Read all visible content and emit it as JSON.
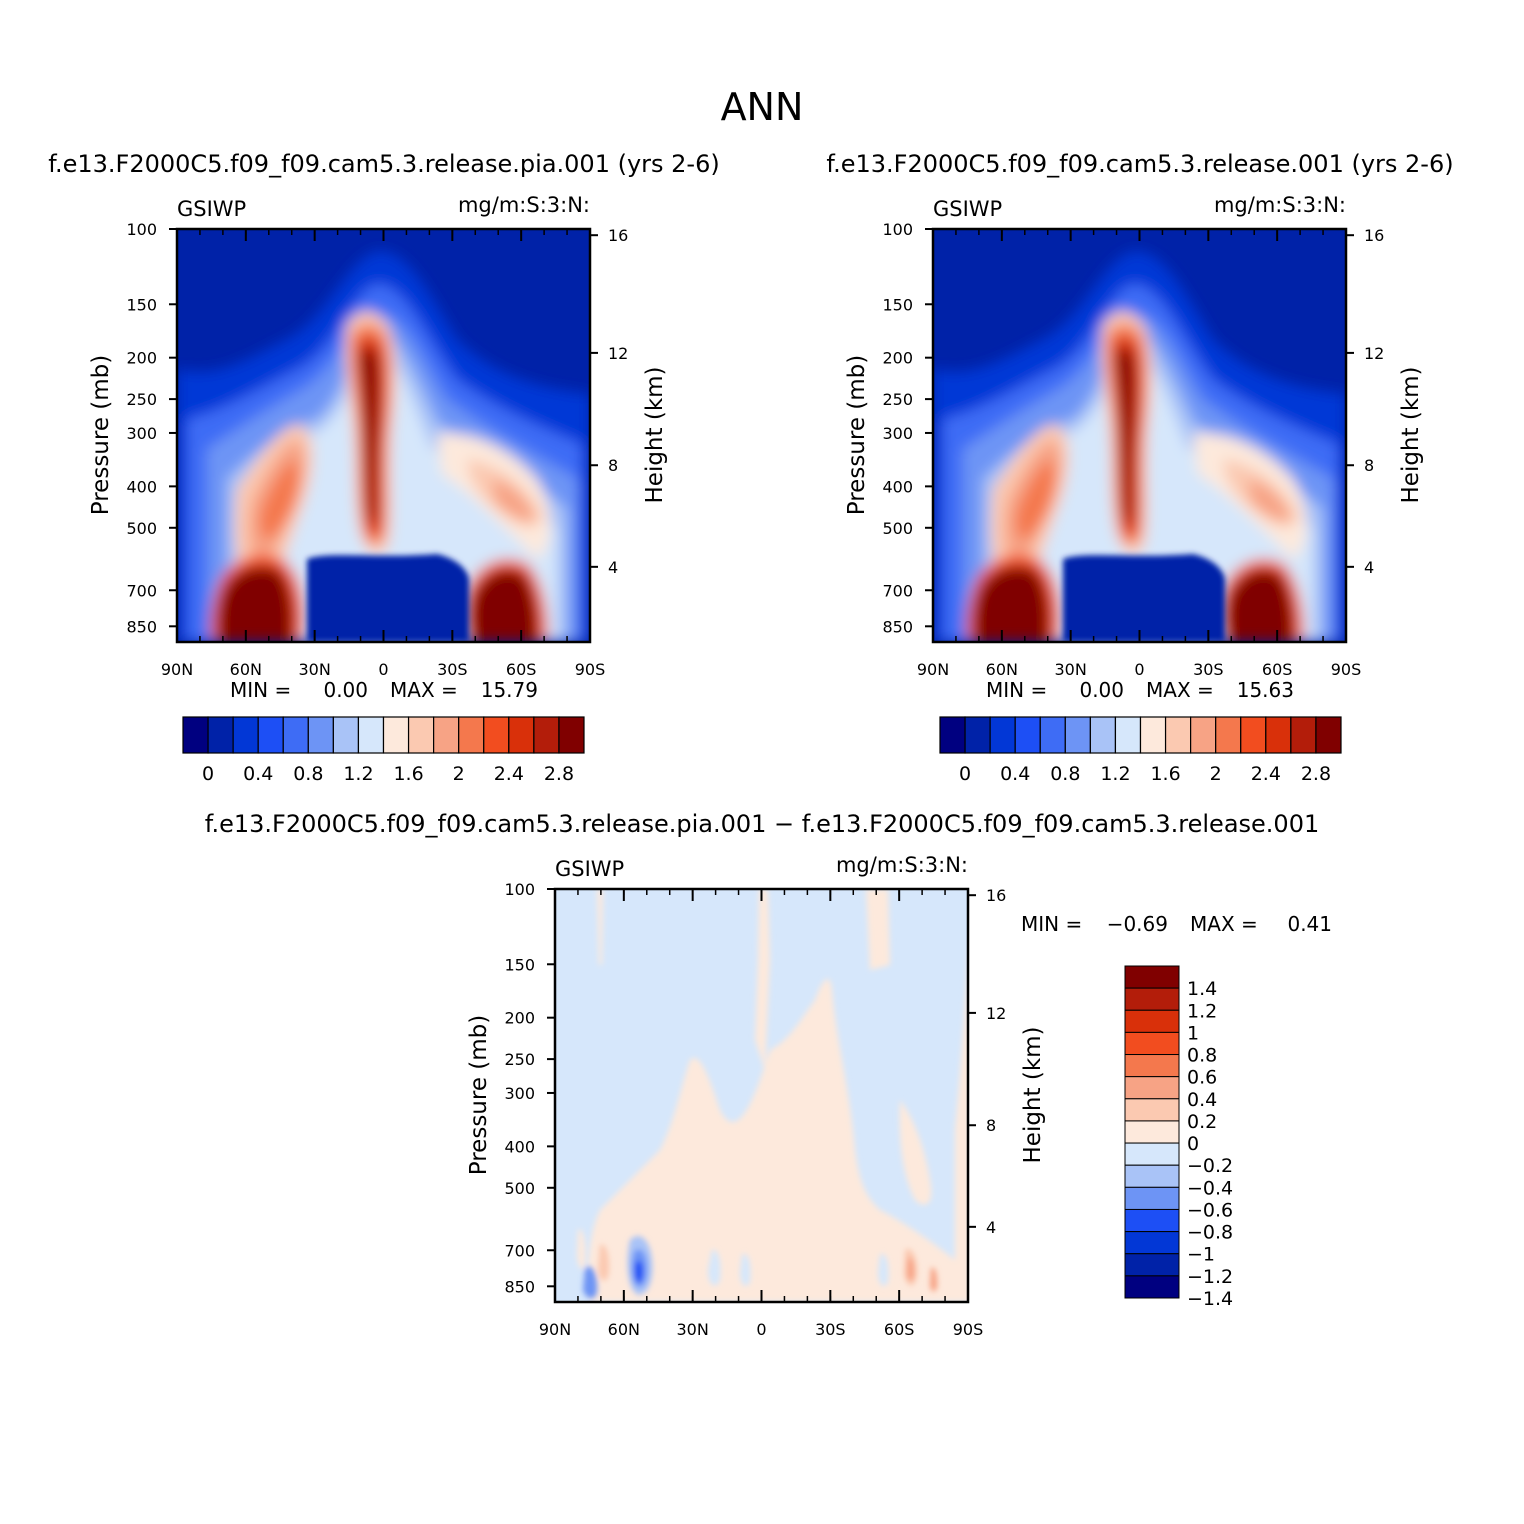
{
  "main_title": "ANN",
  "colors": {
    "main": [
      "#000080",
      "#0022a8",
      "#0237d6",
      "#1d4ff5",
      "#3e6cf5",
      "#6d94f5",
      "#a9c3f7",
      "#d6e7fb",
      "#fde9dc",
      "#fbc9b1",
      "#f7a385",
      "#f4784d",
      "#f24d1f",
      "#d9300a",
      "#b31d0a",
      "#800000"
    ],
    "diff": [
      "#000080",
      "#0022a8",
      "#0237d6",
      "#1d4ff5",
      "#6d94f5",
      "#a9c3f7",
      "#d6e7fb",
      "#fde9dc",
      "#fbc9b1",
      "#f7a385",
      "#f4784d",
      "#f24d1f",
      "#d9300a",
      "#b31d0a",
      "#800000"
    ]
  },
  "chart_data": [
    {
      "id": "panel-pia",
      "type": "contour",
      "title": "f.e13.F2000C5.f09_f09.cam5.3.release.pia.001 (yrs 2-6)",
      "variable": "GSIWP",
      "units": "mg/m:S:3:N:",
      "ylabel": "Pressure (mb)",
      "y2label": "Height (km)",
      "x_ticks": [
        "90N",
        "60N",
        "30N",
        "0",
        "30S",
        "60S",
        "90S"
      ],
      "y_ticks": [
        "100",
        "150",
        "200",
        "250",
        "300",
        "400",
        "500",
        "700",
        "850"
      ],
      "y2_ticks": [
        "16",
        "12",
        "8",
        "4"
      ],
      "min_label": "MIN =",
      "min": "0.00",
      "max_label": "MAX =",
      "max": "15.79",
      "colorbar_labels": [
        "0",
        "0.4",
        "0.8",
        "1.2",
        "1.6",
        "2",
        "2.4",
        "2.8"
      ]
    },
    {
      "id": "panel-control",
      "type": "contour",
      "title": "f.e13.F2000C5.f09_f09.cam5.3.release.001 (yrs 2-6)",
      "variable": "GSIWP",
      "units": "mg/m:S:3:N:",
      "ylabel": "Pressure (mb)",
      "y2label": "Height (km)",
      "x_ticks": [
        "90N",
        "60N",
        "30N",
        "0",
        "30S",
        "60S",
        "90S"
      ],
      "y_ticks": [
        "100",
        "150",
        "200",
        "250",
        "300",
        "400",
        "500",
        "700",
        "850"
      ],
      "y2_ticks": [
        "16",
        "12",
        "8",
        "4"
      ],
      "min_label": "MIN =",
      "min": "0.00",
      "max_label": "MAX =",
      "max": "15.63",
      "colorbar_labels": [
        "0",
        "0.4",
        "0.8",
        "1.2",
        "1.6",
        "2",
        "2.4",
        "2.8"
      ]
    },
    {
      "id": "panel-diff",
      "type": "contour",
      "title": "f.e13.F2000C5.f09_f09.cam5.3.release.pia.001 − f.e13.F2000C5.f09_f09.cam5.3.release.001",
      "variable": "GSIWP",
      "units": "mg/m:S:3:N:",
      "ylabel": "Pressure (mb)",
      "y2label": "Height (km)",
      "x_ticks": [
        "90N",
        "60N",
        "30N",
        "0",
        "30S",
        "60S",
        "90S"
      ],
      "y_ticks": [
        "100",
        "150",
        "200",
        "250",
        "300",
        "400",
        "500",
        "700",
        "850"
      ],
      "y2_ticks": [
        "16",
        "12",
        "8",
        "4"
      ],
      "min_label": "MIN =",
      "min": "−0.69",
      "max_label": "MAX =",
      "max": "0.41",
      "colorbar_labels": [
        "1.4",
        "1.2",
        "1",
        "0.8",
        "0.6",
        "0.4",
        "0.2",
        "0",
        "−0.2",
        "−0.4",
        "−0.6",
        "−0.8",
        "−1",
        "−1.2",
        "−1.4"
      ]
    }
  ]
}
